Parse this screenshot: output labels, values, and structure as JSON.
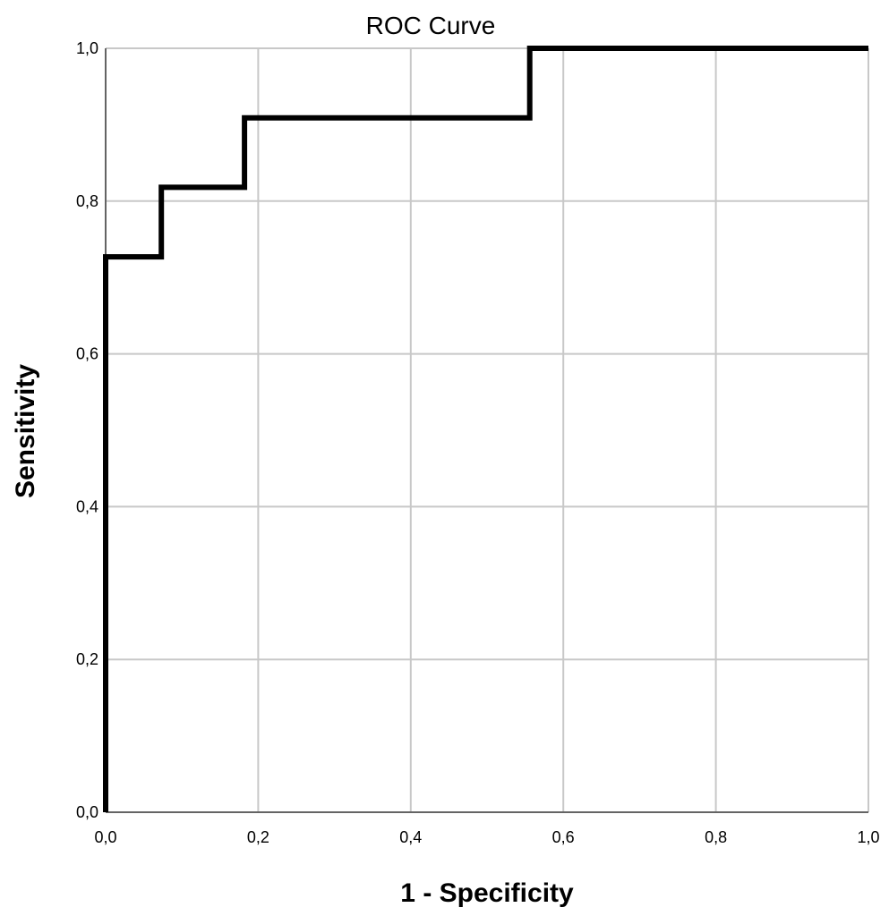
{
  "chart_data": {
    "type": "line",
    "title": "ROC Curve",
    "xlabel": "1 - Specificity",
    "ylabel": "Sensitivity",
    "xlim": [
      0,
      1
    ],
    "ylim": [
      0,
      1
    ],
    "grid": true,
    "x_ticks": [
      "0,0",
      "0,2",
      "0,4",
      "0,6",
      "0,8",
      "1,0"
    ],
    "y_ticks": [
      "0,0",
      "0,2",
      "0,4",
      "0,6",
      "0,8",
      "1,0"
    ],
    "step_points": [
      {
        "x": 0.0,
        "y": 0.0
      },
      {
        "x": 0.0,
        "y": 0.727
      },
      {
        "x": 0.073,
        "y": 0.727
      },
      {
        "x": 0.073,
        "y": 0.818
      },
      {
        "x": 0.182,
        "y": 0.818
      },
      {
        "x": 0.182,
        "y": 0.909
      },
      {
        "x": 0.556,
        "y": 0.909
      },
      {
        "x": 0.556,
        "y": 1.0
      },
      {
        "x": 1.0,
        "y": 1.0
      }
    ],
    "line_color": "#000000",
    "grid_color": "#c8c8c8"
  }
}
